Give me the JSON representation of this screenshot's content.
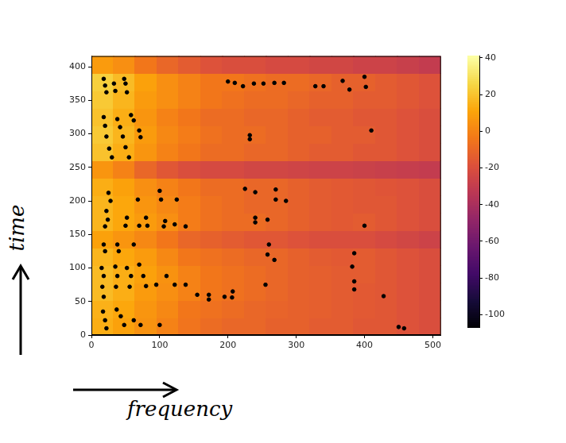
{
  "chart_data": {
    "type": "scatter",
    "xlabel": "frequency",
    "ylabel": "time",
    "xlim": [
      0,
      512
    ],
    "xticks": [
      0,
      100,
      200,
      300,
      400,
      500
    ],
    "ylim": [
      0,
      416
    ],
    "yticks": [
      0,
      50,
      100,
      150,
      200,
      250,
      300,
      350,
      400
    ],
    "grid": false,
    "color": "#000000",
    "marker": "circle",
    "x": [
      18,
      20,
      22,
      33,
      35,
      48,
      50,
      52,
      200,
      210,
      222,
      238,
      252,
      268,
      282,
      328,
      340,
      368,
      378,
      400,
      402,
      18,
      20,
      22,
      26,
      30,
      38,
      42,
      46,
      50,
      55,
      58,
      62,
      70,
      72,
      232,
      232,
      410,
      25,
      28,
      22,
      24,
      20,
      52,
      50,
      68,
      70,
      80,
      82,
      100,
      102,
      108,
      106,
      125,
      122,
      138,
      225,
      240,
      270,
      270,
      285,
      240,
      240,
      258,
      400,
      18,
      20,
      38,
      40,
      62,
      260,
      258,
      268,
      385,
      382,
      15,
      18,
      16,
      18,
      35,
      38,
      36,
      52,
      58,
      56,
      70,
      76,
      80,
      95,
      110,
      122,
      138,
      155,
      172,
      172,
      195,
      207,
      206,
      255,
      385,
      385,
      428,
      17,
      20,
      22,
      37,
      43,
      48,
      62,
      72,
      100,
      450,
      458
    ],
    "values": [
      382,
      372,
      362,
      375,
      364,
      382,
      375,
      362,
      378,
      376,
      371,
      375,
      375,
      376,
      376,
      371,
      371,
      379,
      366,
      385,
      370,
      325,
      312,
      296,
      278,
      265,
      322,
      310,
      296,
      280,
      265,
      328,
      320,
      305,
      295,
      298,
      292,
      305,
      212,
      200,
      185,
      172,
      162,
      175,
      163,
      202,
      163,
      175,
      163,
      215,
      202,
      170,
      162,
      202,
      165,
      162,
      218,
      213,
      217,
      202,
      200,
      175,
      168,
      172,
      163,
      135,
      125,
      135,
      125,
      135,
      135,
      120,
      112,
      122,
      102,
      100,
      88,
      72,
      57,
      102,
      88,
      72,
      100,
      88,
      72,
      105,
      88,
      73,
      75,
      88,
      75,
      75,
      60,
      60,
      53,
      57,
      65,
      56,
      75,
      80,
      68,
      58,
      35,
      22,
      10,
      38,
      28,
      15,
      22,
      15,
      15,
      12,
      10
    ],
    "heatmap": {
      "x_edges": [
        0,
        32,
        64,
        96,
        128,
        160,
        192,
        224,
        256,
        288,
        320,
        352,
        384,
        416,
        448,
        480,
        512
      ],
      "y_edges": [
        0,
        26,
        52,
        78,
        104,
        130,
        156,
        182,
        208,
        234,
        260,
        286,
        312,
        338,
        364,
        390,
        416
      ],
      "cells": [
        [
          14,
          10,
          5,
          0,
          -5,
          -8,
          -10,
          -10,
          -12,
          -12,
          -14,
          -14,
          -16,
          -16,
          -18,
          -20
        ],
        [
          15,
          12,
          6,
          2,
          -4,
          -6,
          -8,
          -10,
          -11,
          -12,
          -13,
          -14,
          -15,
          -16,
          -18,
          -20
        ],
        [
          18,
          14,
          8,
          4,
          0,
          -4,
          -6,
          -8,
          -10,
          -12,
          -13,
          -14,
          -15,
          -16,
          -18,
          -20
        ],
        [
          18,
          14,
          10,
          5,
          0,
          -4,
          -6,
          -8,
          -10,
          -12,
          -13,
          -14,
          -14,
          -16,
          -18,
          -20
        ],
        [
          16,
          12,
          8,
          2,
          -4,
          -6,
          -8,
          -10,
          -10,
          -12,
          -14,
          -15,
          -14,
          -16,
          -18,
          -20
        ],
        [
          10,
          6,
          2,
          -4,
          -10,
          -12,
          -14,
          -16,
          -16,
          -18,
          -20,
          -20,
          -20,
          -22,
          -24,
          -26
        ],
        [
          16,
          12,
          8,
          4,
          -2,
          -6,
          -8,
          -8,
          -10,
          -12,
          -14,
          -15,
          -14,
          -16,
          -18,
          -20
        ],
        [
          16,
          12,
          6,
          2,
          -2,
          -6,
          -8,
          -10,
          -10,
          -12,
          -14,
          -15,
          -16,
          -16,
          -18,
          -20
        ],
        [
          14,
          10,
          4,
          0,
          -4,
          -8,
          -8,
          -10,
          -10,
          -12,
          -14,
          -15,
          -16,
          -17,
          -18,
          -20
        ],
        [
          6,
          0,
          -10,
          -16,
          -20,
          -22,
          -22,
          -24,
          -24,
          -25,
          -26,
          -26,
          -27,
          -28,
          -29,
          -30
        ],
        [
          20,
          14,
          6,
          0,
          -4,
          -8,
          -8,
          -10,
          -10,
          -12,
          -14,
          -14,
          -16,
          -16,
          -18,
          -20
        ],
        [
          22,
          16,
          8,
          2,
          -2,
          -6,
          -8,
          -8,
          -10,
          -12,
          -12,
          -14,
          -14,
          -16,
          -18,
          -20
        ],
        [
          20,
          14,
          6,
          0,
          -4,
          -8,
          -8,
          -10,
          -10,
          -12,
          -14,
          -14,
          -16,
          -16,
          -18,
          -20
        ],
        [
          22,
          16,
          8,
          4,
          0,
          -4,
          -6,
          -8,
          -8,
          -10,
          -12,
          -12,
          -14,
          -14,
          -16,
          -18
        ],
        [
          24,
          18,
          10,
          4,
          0,
          -4,
          -4,
          -6,
          -8,
          -8,
          -10,
          -12,
          -12,
          -14,
          -16,
          -18
        ],
        [
          8,
          4,
          -4,
          -10,
          -14,
          -18,
          -20,
          -20,
          -22,
          -22,
          -24,
          -24,
          -26,
          -26,
          -28,
          -30
        ]
      ]
    },
    "colorbar": {
      "range": [
        -107,
        41
      ],
      "ticks": [
        -100,
        -80,
        -60,
        -40,
        -20,
        0,
        20,
        40
      ]
    }
  }
}
